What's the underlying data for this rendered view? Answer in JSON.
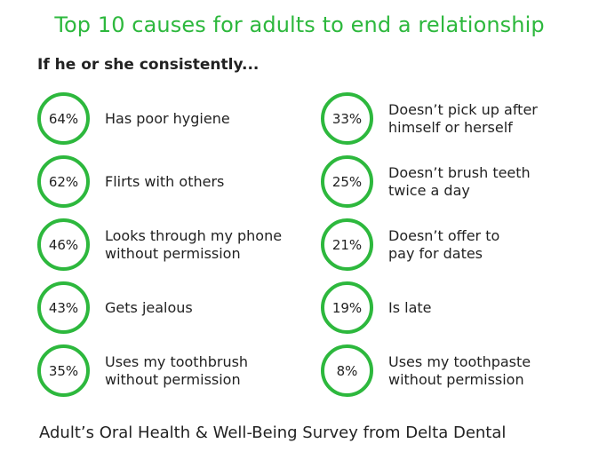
{
  "chart_data": {
    "type": "table",
    "title": "Top 10 causes for adults to end a relationship",
    "subtitle": "If he or she consistently...",
    "accent_color": "#2db83d",
    "items": [
      {
        "value": "64%",
        "label": "Has poor hygiene"
      },
      {
        "value": "62%",
        "label": "Flirts with others"
      },
      {
        "value": "46%",
        "label": "Looks through my phone\nwithout permission"
      },
      {
        "value": "43%",
        "label": "Gets jealous"
      },
      {
        "value": "35%",
        "label": "Uses my toothbrush\nwithout permission"
      },
      {
        "value": "33%",
        "label": "Doesn’t pick up after\nhimself or herself"
      },
      {
        "value": "25%",
        "label": "Doesn’t brush teeth\ntwice a day"
      },
      {
        "value": "21%",
        "label": "Doesn’t offer to\npay for dates"
      },
      {
        "value": "19%",
        "label": "Is late"
      },
      {
        "value": "8%",
        "label": "Uses my toothpaste\nwithout permission"
      }
    ],
    "source": "Adult’s Oral Health & Well-Being Survey from Delta Dental"
  }
}
